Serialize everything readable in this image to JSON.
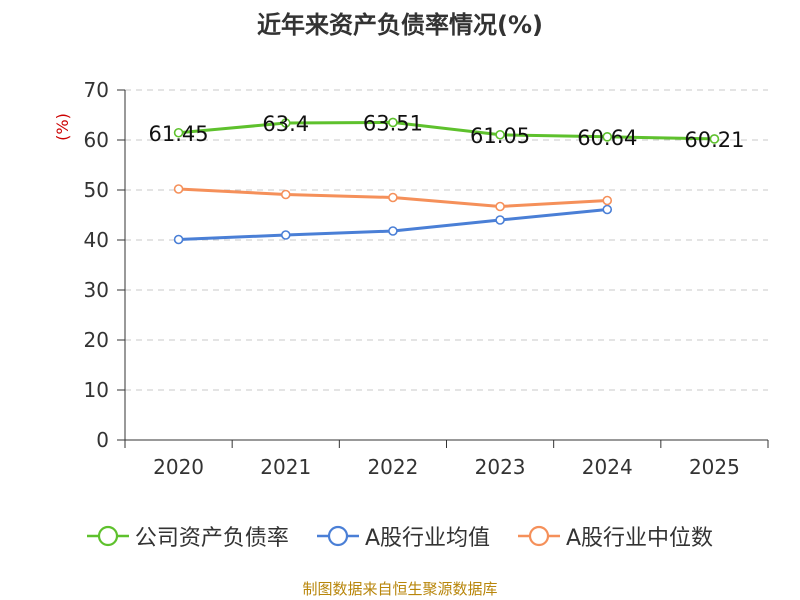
{
  "chart_data": {
    "type": "line",
    "title": "近年来资产负债率情况(%)",
    "ylabel": "(%)",
    "xlabel": "",
    "categories": [
      "2020",
      "2021",
      "2022",
      "2023",
      "2024",
      "2025"
    ],
    "ylim": [
      0,
      70
    ],
    "yticks": [
      0,
      10,
      20,
      30,
      40,
      50,
      60,
      70
    ],
    "grid": true,
    "legend_position": "bottom",
    "series": [
      {
        "name": "公司资产负债率",
        "color": "#5ec12d",
        "values": [
          61.45,
          63.4,
          63.51,
          61.05,
          60.64,
          60.21
        ],
        "labels": [
          "61.45",
          "63.4",
          "63.51",
          "61.05",
          "60.64",
          "60.21"
        ],
        "show_labels": true
      },
      {
        "name": "A股行业均值",
        "color": "#4a7fd6",
        "values": [
          40.1,
          41.0,
          41.8,
          44.0,
          46.1,
          null
        ],
        "show_labels": false
      },
      {
        "name": "A股行业中位数",
        "color": "#f5905a",
        "values": [
          50.2,
          49.1,
          48.5,
          46.7,
          47.9,
          null
        ],
        "show_labels": false
      }
    ]
  },
  "source": "制图数据来自恒生聚源数据库"
}
